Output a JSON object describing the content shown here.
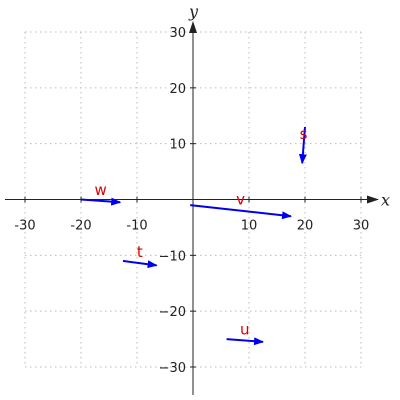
{
  "chart_data": {
    "type": "vector_field",
    "xlabel": "x",
    "ylabel": "y",
    "xlim": [
      -30,
      30
    ],
    "ylim": [
      -30,
      30
    ],
    "x_ticks": [
      -30,
      -20,
      -10,
      10,
      20,
      30
    ],
    "y_ticks": [
      -30,
      -20,
      -10,
      10,
      20,
      30
    ],
    "x_tick_labels": [
      "-30",
      "-20",
      "-10",
      "10",
      "20",
      "30"
    ],
    "y_tick_labels": [
      "−30",
      "−20",
      "−10",
      "10",
      "20",
      "30"
    ],
    "grid": true,
    "vector_color": "#0000ee",
    "label_color": "#dd0000",
    "vectors": [
      {
        "name": "s",
        "start": [
          20,
          13
        ],
        "end": [
          19.5,
          6.5
        ]
      },
      {
        "name": "v",
        "start": [
          -0.5,
          -1
        ],
        "end": [
          17.5,
          -3
        ]
      },
      {
        "name": "w",
        "start": [
          -20,
          0
        ],
        "end": [
          -13,
          -0.5
        ]
      },
      {
        "name": "t",
        "start": [
          -12.5,
          -11
        ],
        "end": [
          -6.5,
          -11.8
        ]
      },
      {
        "name": "u",
        "start": [
          6,
          -25
        ],
        "end": [
          12.5,
          -25.5
        ]
      }
    ]
  }
}
